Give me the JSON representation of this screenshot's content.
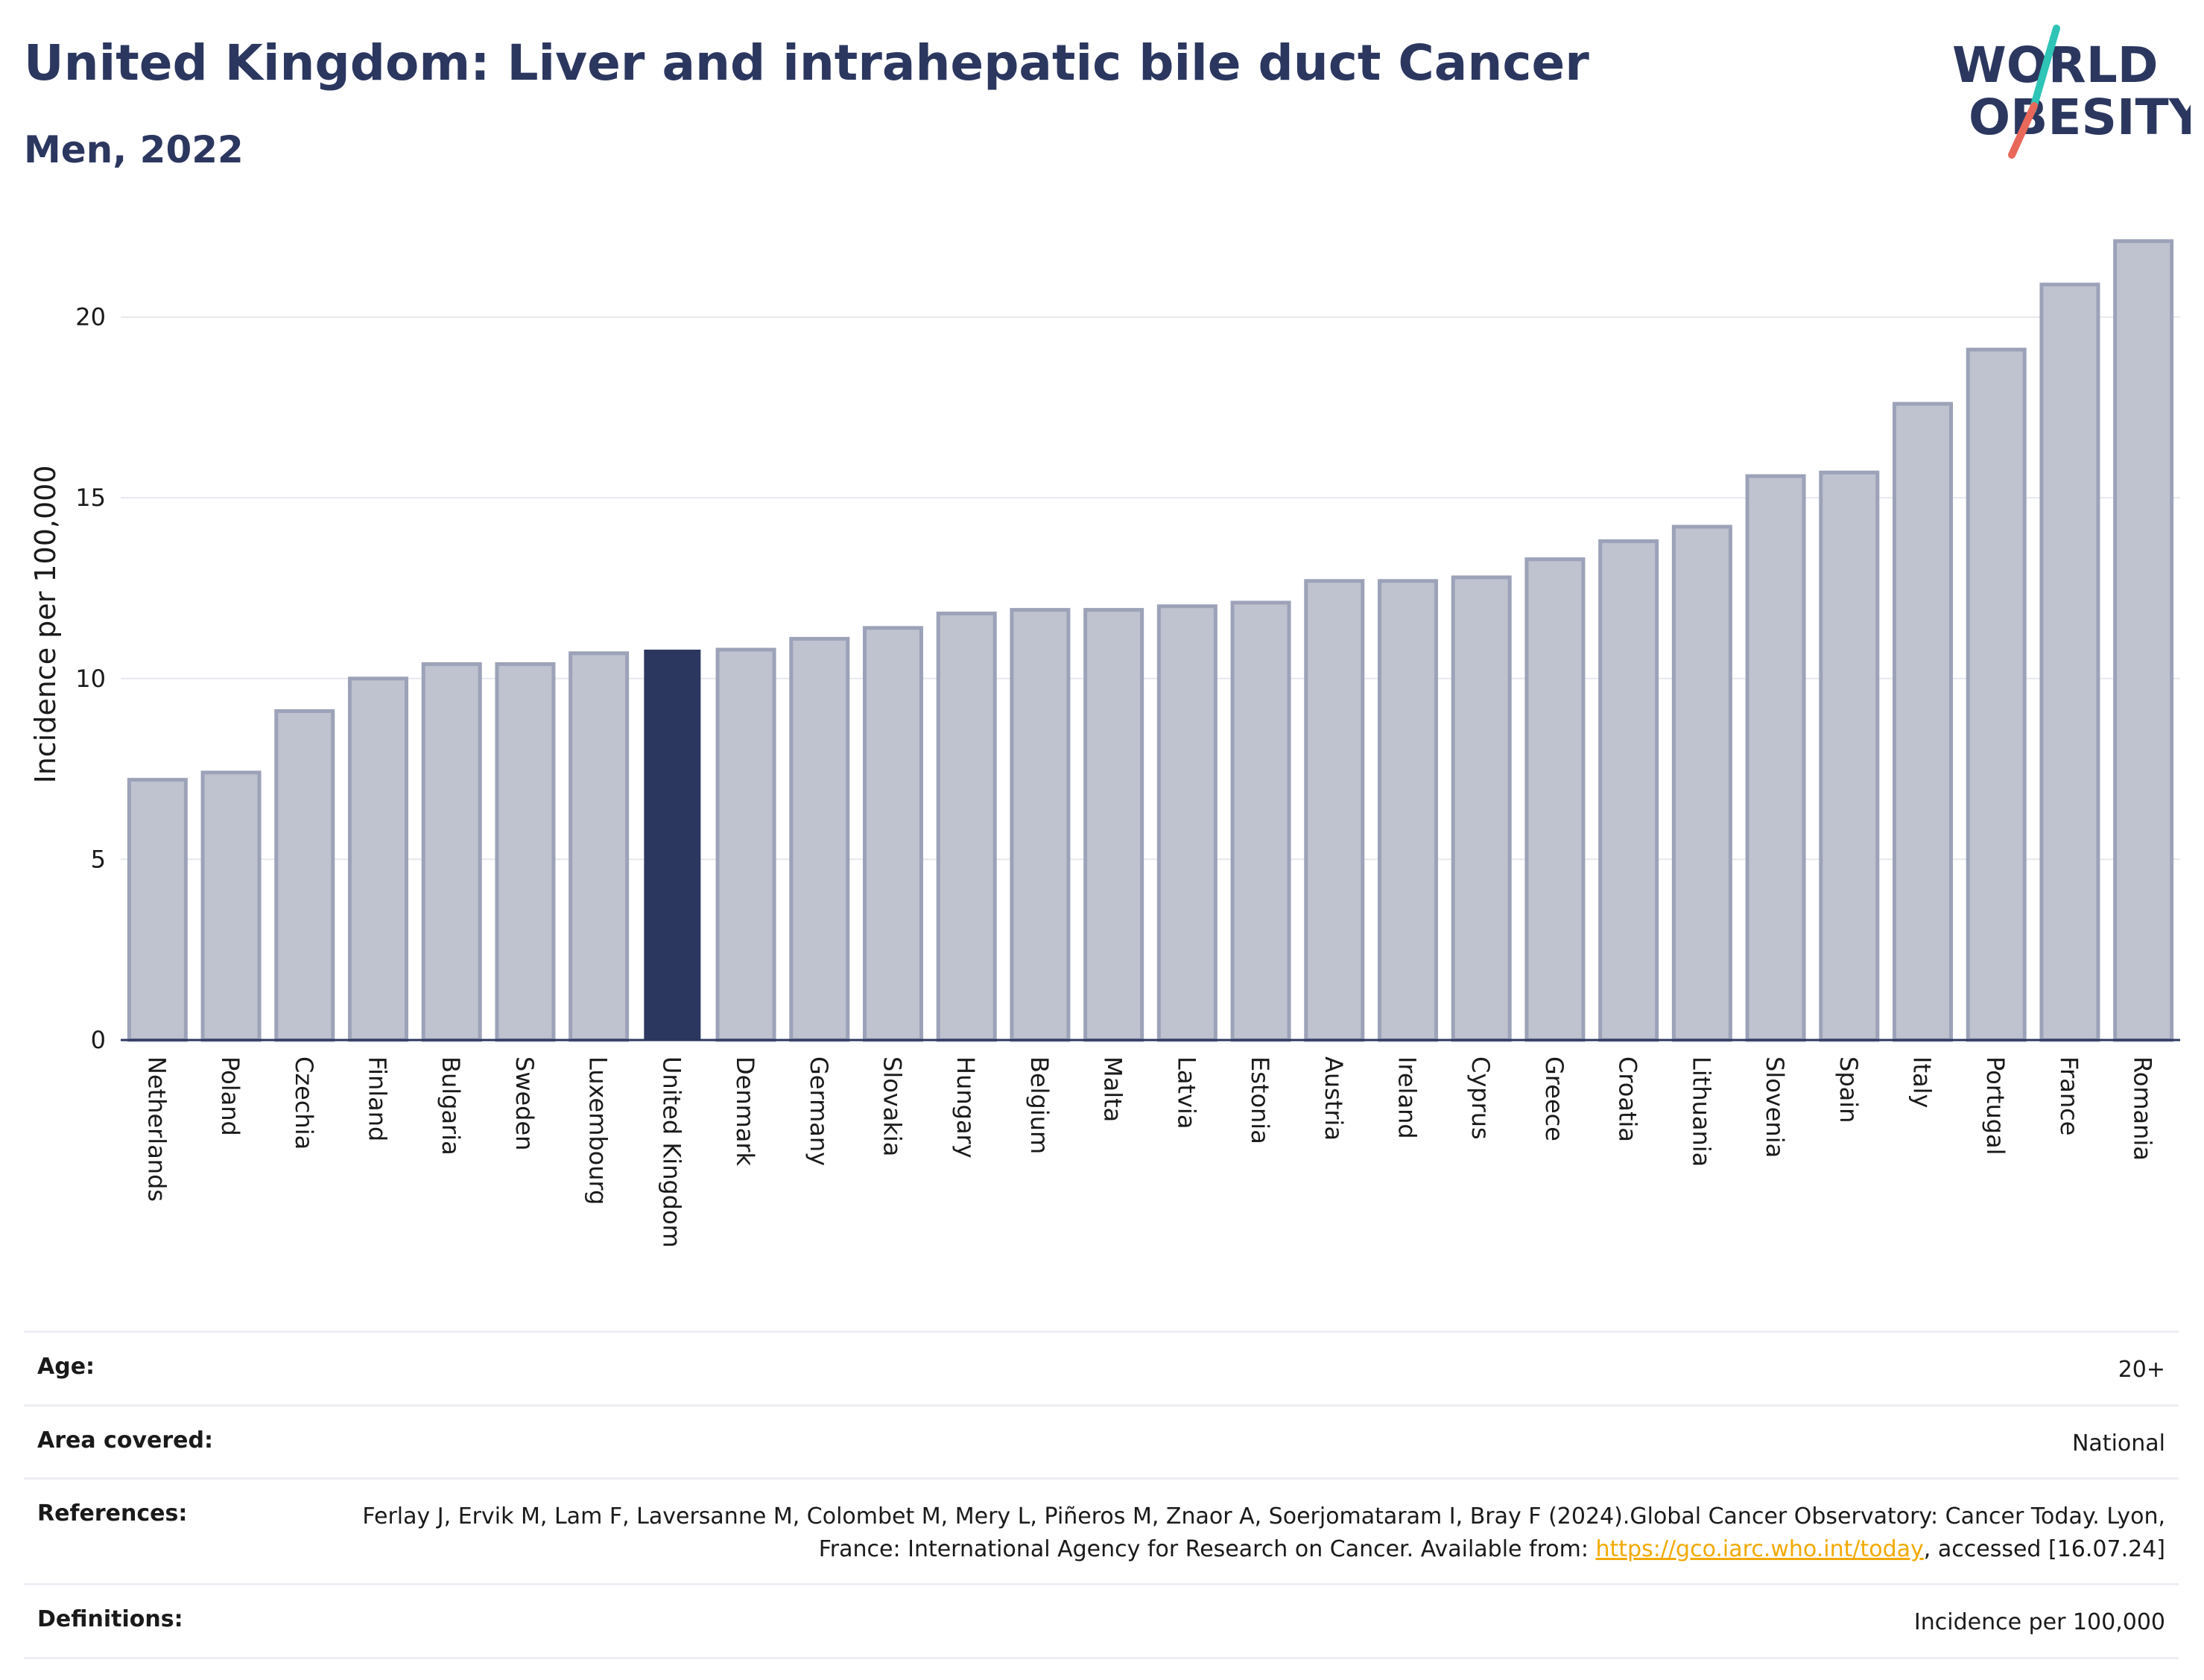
{
  "header": {
    "title": "United Kingdom: Liver and intrahepatic bile duct Cancer",
    "subtitle": "Men, 2022"
  },
  "logo": {
    "line1": "WORLD",
    "line2": "OBESITY",
    "colors": {
      "text": "#2b375f",
      "slash_top": "#2ec4b6",
      "slash_bottom": "#e8685a"
    }
  },
  "chart_data": {
    "type": "bar",
    "categories": [
      "Netherlands",
      "Poland",
      "Czechia",
      "Finland",
      "Bulgaria",
      "Sweden",
      "Luxembourg",
      "United Kingdom",
      "Denmark",
      "Germany",
      "Slovakia",
      "Hungary",
      "Belgium",
      "Malta",
      "Latvia",
      "Estonia",
      "Austria",
      "Ireland",
      "Cyprus",
      "Greece",
      "Croatia",
      "Lithuania",
      "Slovenia",
      "Spain",
      "Italy",
      "Portugal",
      "France",
      "Romania"
    ],
    "values": [
      7.2,
      7.4,
      9.1,
      10.0,
      10.4,
      10.4,
      10.7,
      10.8,
      10.8,
      11.1,
      11.4,
      11.8,
      11.9,
      11.9,
      12.0,
      12.1,
      12.7,
      12.7,
      12.8,
      13.3,
      13.8,
      14.2,
      15.6,
      15.7,
      17.6,
      19.1,
      20.9,
      22.1
    ],
    "highlight": "United Kingdom",
    "ylabel": "Incidence per 100,000",
    "xlabel": "",
    "ylim": [
      0,
      23
    ],
    "yticks": [
      0,
      5,
      10,
      15,
      20
    ],
    "grid": true,
    "colors": {
      "bar": "#bfc2cf",
      "bar_edge": "#9ca2b8",
      "highlight": "#2b375f",
      "grid": "#e6e8ee",
      "axis": "#2b375f"
    }
  },
  "meta": {
    "age_label": "Age:",
    "age_value": "20+",
    "area_label": "Area covered:",
    "area_value": "National",
    "references_label": "References:",
    "references_text_1": "Ferlay J, Ervik M, Lam F, Laversanne M, Colombet M, Mery L, Piñeros M, Znaor A, Soerjomataram I, Bray F (2024).Global Cancer Observatory: Cancer Today. Lyon, France: International Agency for Research on Cancer. Available from: ",
    "references_link": "https://gco.iarc.who.int/today",
    "references_text_2": ", accessed [16.07.24]",
    "definitions_label": "Definitions:",
    "definitions_value": "Incidence per 100,000"
  }
}
